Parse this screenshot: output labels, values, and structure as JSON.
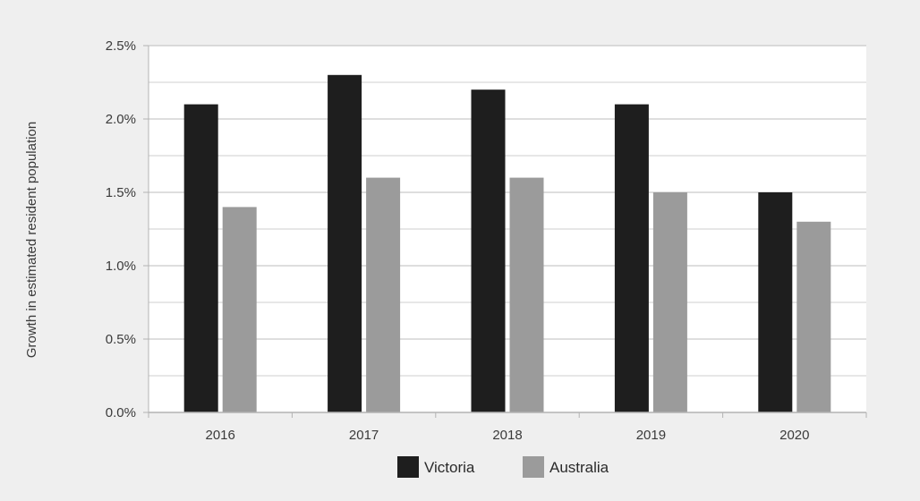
{
  "chart_data": {
    "type": "bar",
    "categories": [
      "2016",
      "2017",
      "2018",
      "2019",
      "2020"
    ],
    "series": [
      {
        "name": "Victoria",
        "values": [
          2.1,
          2.3,
          2.2,
          2.1,
          1.5
        ],
        "color": "#1e1e1e"
      },
      {
        "name": "Australia",
        "values": [
          1.4,
          1.6,
          1.6,
          1.5,
          1.3
        ],
        "color": "#9b9b9b"
      }
    ],
    "ylabel": "Growth in estimated resident population",
    "xlabel": "",
    "ylim": [
      0,
      2.5
    ],
    "yticks": [
      "0.0%",
      "0.5%",
      "1.0%",
      "1.5%",
      "2.0%",
      "2.5%"
    ],
    "ytick_values": [
      0,
      0.5,
      1.0,
      1.5,
      2.0,
      2.5
    ],
    "grid": true,
    "legend_position": "bottom-center"
  }
}
